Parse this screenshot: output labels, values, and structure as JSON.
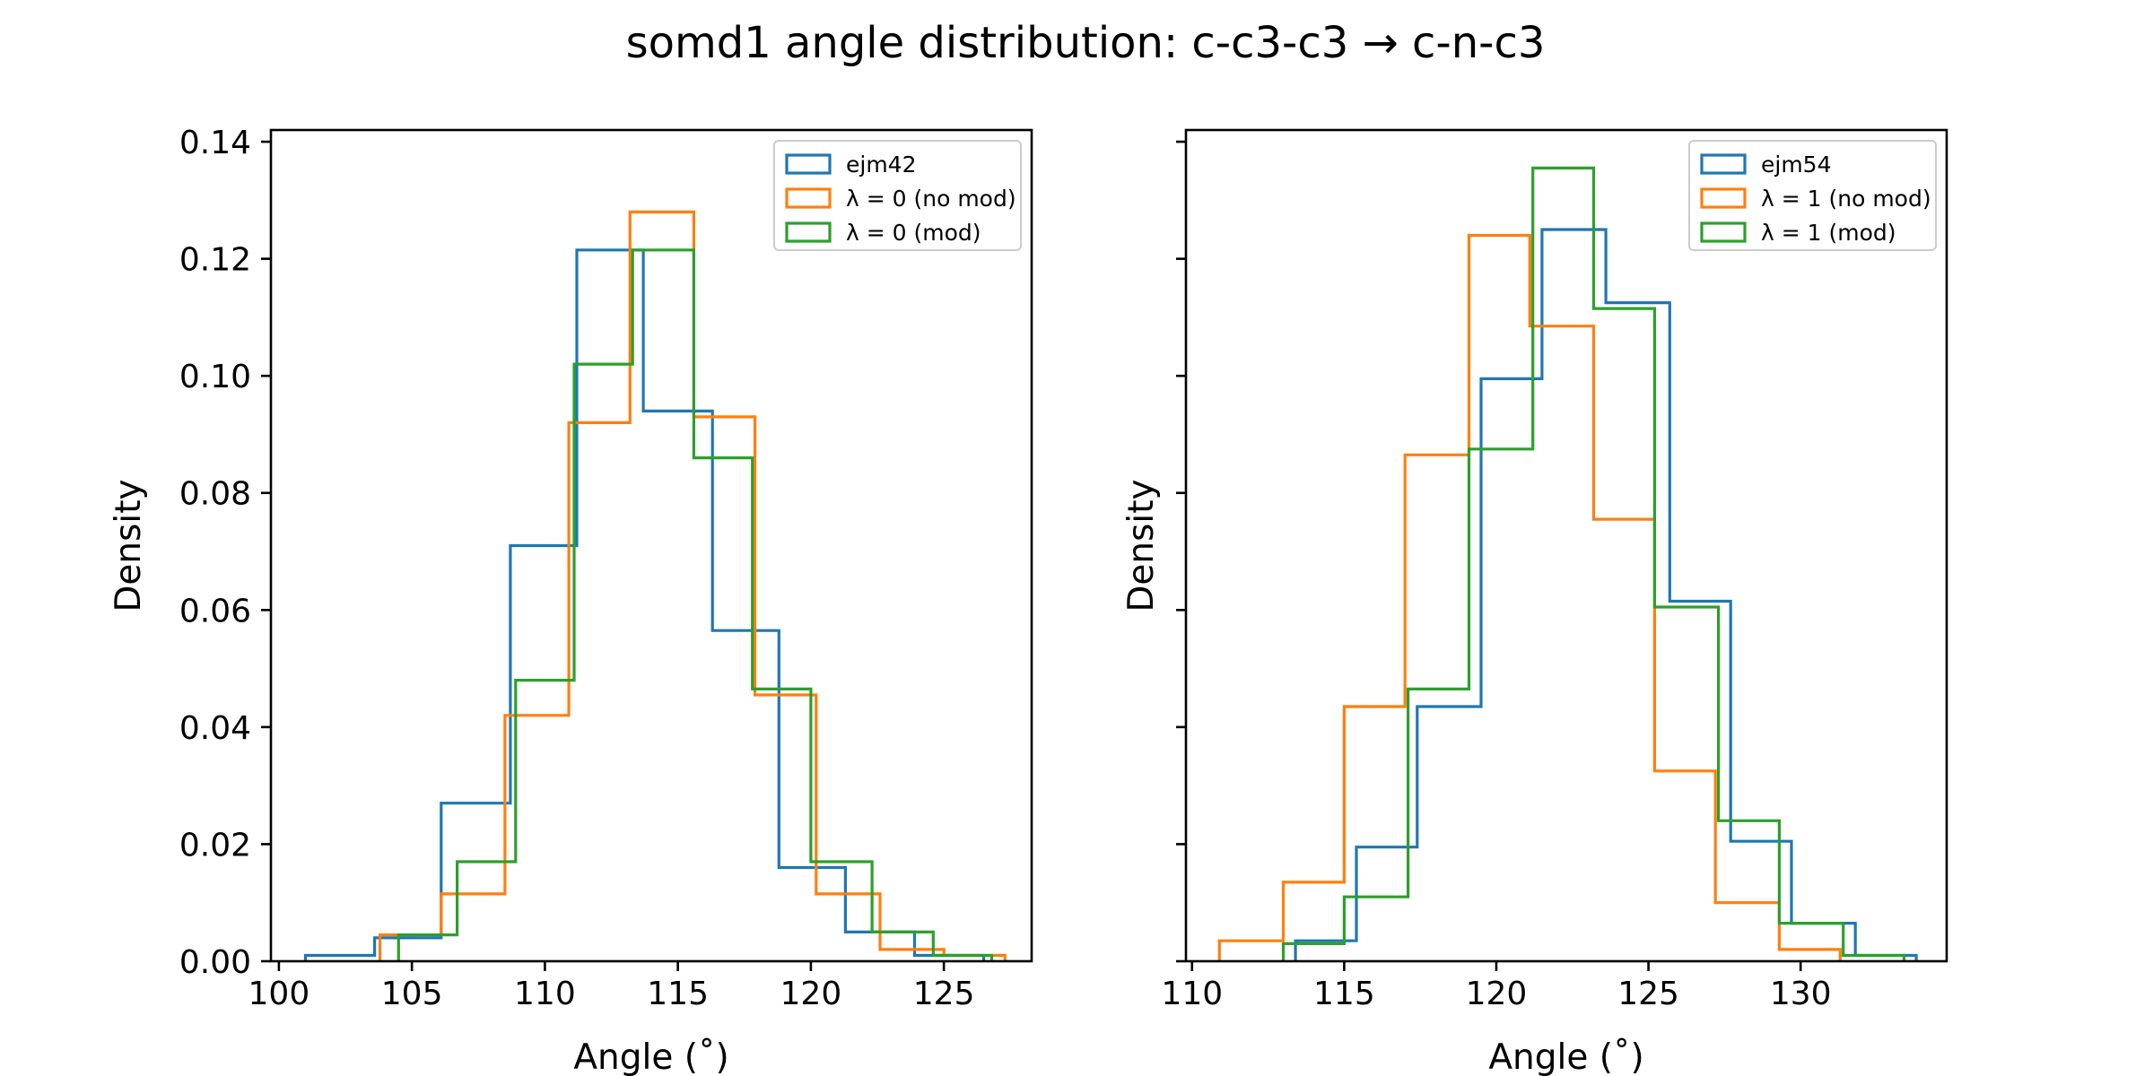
{
  "figure": {
    "title": "somd1 angle distribution: c-c3-c3 → c-n-c3"
  },
  "colors": {
    "blue": "#1f77b4",
    "orange": "#ff7f0e",
    "green": "#2ca02c"
  },
  "chart_data": [
    {
      "type": "histogram-step",
      "xlabel": "Angle ($^\\circ$)",
      "xlabel_display": "Angle (˚)",
      "ylabel": "Density",
      "xlim": [
        99.7,
        128.3
      ],
      "ylim": [
        0,
        0.142
      ],
      "xticks": [
        100,
        105,
        110,
        115,
        120,
        125
      ],
      "yticks": [
        0.0,
        0.02,
        0.04,
        0.06,
        0.08,
        0.1,
        0.12,
        0.14
      ],
      "ytick_labels": [
        "0.00",
        "0.02",
        "0.04",
        "0.06",
        "0.08",
        "0.10",
        "0.12",
        "0.14"
      ],
      "legend_position": "upper right",
      "series": [
        {
          "name": "ejm42",
          "color": "#1f77b4",
          "edges": [
            101.0,
            103.6,
            106.1,
            108.7,
            111.2,
            113.7,
            116.3,
            118.8,
            121.3,
            123.9,
            126.5
          ],
          "values": [
            0.001,
            0.004,
            0.027,
            0.071,
            0.1215,
            0.094,
            0.0565,
            0.016,
            0.005,
            0.001
          ]
        },
        {
          "name": "λ = 0 (no mod)",
          "color": "#ff7f0e",
          "edges": [
            103.8,
            106.1,
            108.5,
            110.9,
            113.2,
            115.6,
            117.9,
            120.2,
            122.6,
            125.0,
            127.3
          ],
          "values": [
            0.0045,
            0.0115,
            0.042,
            0.092,
            0.128,
            0.093,
            0.0455,
            0.0115,
            0.002,
            0.001
          ]
        },
        {
          "name": "λ = 0 (mod)",
          "color": "#2ca02c",
          "edges": [
            104.5,
            106.7,
            108.9,
            111.1,
            113.3,
            115.6,
            117.8,
            120.0,
            122.3,
            124.6,
            126.8
          ],
          "values": [
            0.0045,
            0.017,
            0.048,
            0.102,
            0.1215,
            0.086,
            0.0465,
            0.017,
            0.005,
            0.001
          ]
        }
      ],
      "legend": [
        "ejm42",
        "λ = 0 (no mod)",
        "λ = 0 (mod)"
      ]
    },
    {
      "type": "histogram-step",
      "xlabel": "Angle ($^\\circ$)",
      "xlabel_display": "Angle (˚)",
      "ylabel": "Density",
      "xlim": [
        109.8,
        134.8
      ],
      "ylim": [
        0,
        0.142
      ],
      "xticks": [
        110,
        115,
        120,
        125,
        130
      ],
      "yticks": [
        0.0,
        0.02,
        0.04,
        0.06,
        0.08,
        0.1,
        0.12,
        0.14
      ],
      "ytick_labels": [],
      "legend_position": "upper right",
      "series": [
        {
          "name": "ejm54",
          "color": "#1f77b4",
          "edges": [
            113.4,
            115.4,
            117.4,
            119.5,
            121.5,
            123.6,
            125.7,
            127.7,
            129.7,
            131.8,
            133.8
          ],
          "values": [
            0.0035,
            0.0195,
            0.0435,
            0.0995,
            0.125,
            0.1125,
            0.0615,
            0.0205,
            0.0065,
            0.001
          ]
        },
        {
          "name": "λ = 1 (no mod)",
          "color": "#ff7f0e",
          "edges": [
            110.9,
            113.0,
            115.0,
            117.0,
            119.1,
            121.1,
            123.2,
            125.2,
            127.2,
            129.3,
            131.3
          ],
          "values": [
            0.0035,
            0.0135,
            0.0435,
            0.0865,
            0.124,
            0.1085,
            0.0755,
            0.0325,
            0.01,
            0.002
          ]
        },
        {
          "name": "λ = 1 (mod)",
          "color": "#2ca02c",
          "edges": [
            113.0,
            115.0,
            117.1,
            119.1,
            121.2,
            123.2,
            125.2,
            127.3,
            129.3,
            131.4,
            133.4
          ],
          "values": [
            0.003,
            0.011,
            0.0465,
            0.0875,
            0.1355,
            0.1115,
            0.0605,
            0.024,
            0.0065,
            0.001
          ]
        }
      ],
      "legend": [
        "ejm54",
        "λ = 1 (no mod)",
        "λ = 1 (mod)"
      ]
    }
  ]
}
